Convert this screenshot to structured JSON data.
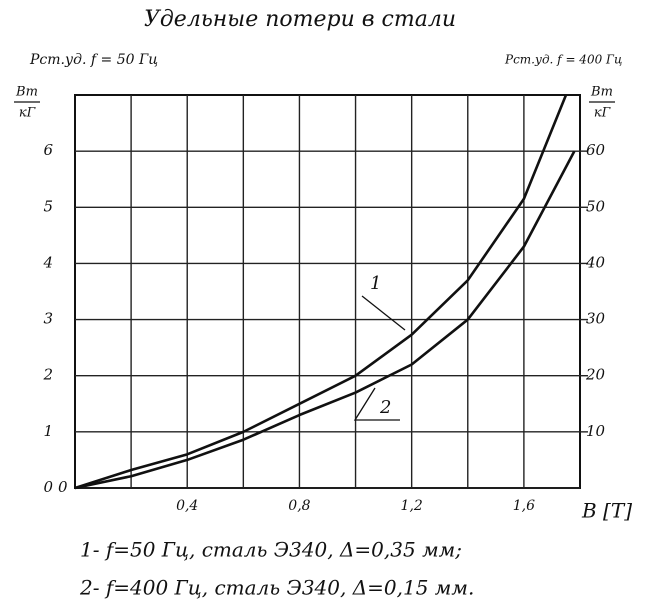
{
  "chart_data": {
    "type": "line",
    "title": "Удельные потери в стали",
    "y_label": "Рст.уд. f = 50 Гц",
    "y2_label": "Рст.уд. f = 400 Гц",
    "y_unit": {
      "numerator": "Вт",
      "denominator": "кГ"
    },
    "y2_unit": {
      "numerator": "Вт",
      "denominator": "кГ"
    },
    "x_label": "B [T]",
    "xlim": [
      0,
      1.8
    ],
    "xticks": [
      {
        "value": 0.4,
        "label": "0,4"
      },
      {
        "value": 0.8,
        "label": "0,8"
      },
      {
        "value": 1.2,
        "label": "1,2"
      },
      {
        "value": 1.6,
        "label": "1,6"
      }
    ],
    "minor_xticks": [
      0.2,
      0.6,
      1.0,
      1.4
    ],
    "ylim": [
      0,
      7
    ],
    "yticks": [
      0,
      1,
      2,
      3,
      4,
      5,
      6
    ],
    "y2lim": [
      0,
      70
    ],
    "y2ticks": [
      10,
      20,
      30,
      40,
      50,
      60
    ],
    "grid": true,
    "series": [
      {
        "name": "1- f=50 Гц, сталь Э340,  Δ=0,35 мм;",
        "label": "1",
        "color": "#111111",
        "x": [
          0,
          0.2,
          0.4,
          0.6,
          0.8,
          1.0,
          1.2,
          1.4,
          1.6,
          1.75
        ],
        "values": [
          0,
          0.32,
          0.6,
          1.0,
          1.5,
          2.0,
          2.73,
          3.7,
          5.15,
          7.0
        ]
      },
      {
        "name": "2- f=400 Гц, сталь Э340,  Δ=0,15 мм.",
        "label": "2",
        "color": "#111111",
        "axis": "y2",
        "x": [
          0,
          0.2,
          0.4,
          0.6,
          0.8,
          1.0,
          1.2,
          1.4,
          1.6,
          1.78
        ],
        "values": [
          0,
          2.1,
          5,
          8.6,
          13,
          17,
          22,
          30,
          43,
          60
        ]
      }
    ]
  }
}
